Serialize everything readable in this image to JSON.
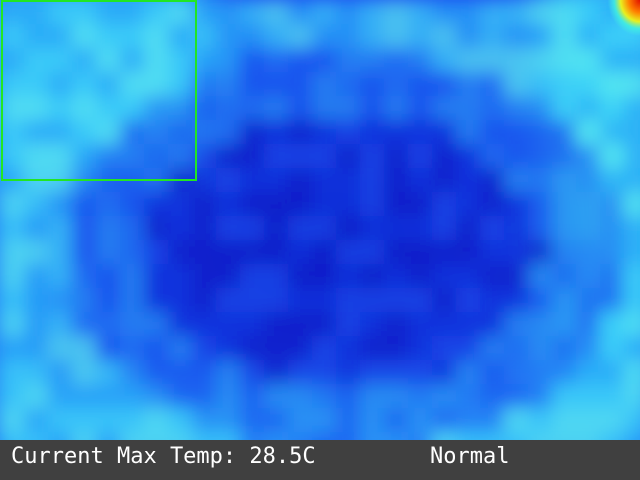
{
  "status": {
    "max_temp_label": "Current Max Temp: 28.5C",
    "state": "Normal"
  },
  "colors": {
    "roi_box": "#22e622",
    "status_bar_bg": "#404040",
    "status_text": "#ffffff",
    "hot_spot": "#e82000"
  },
  "icons": []
}
